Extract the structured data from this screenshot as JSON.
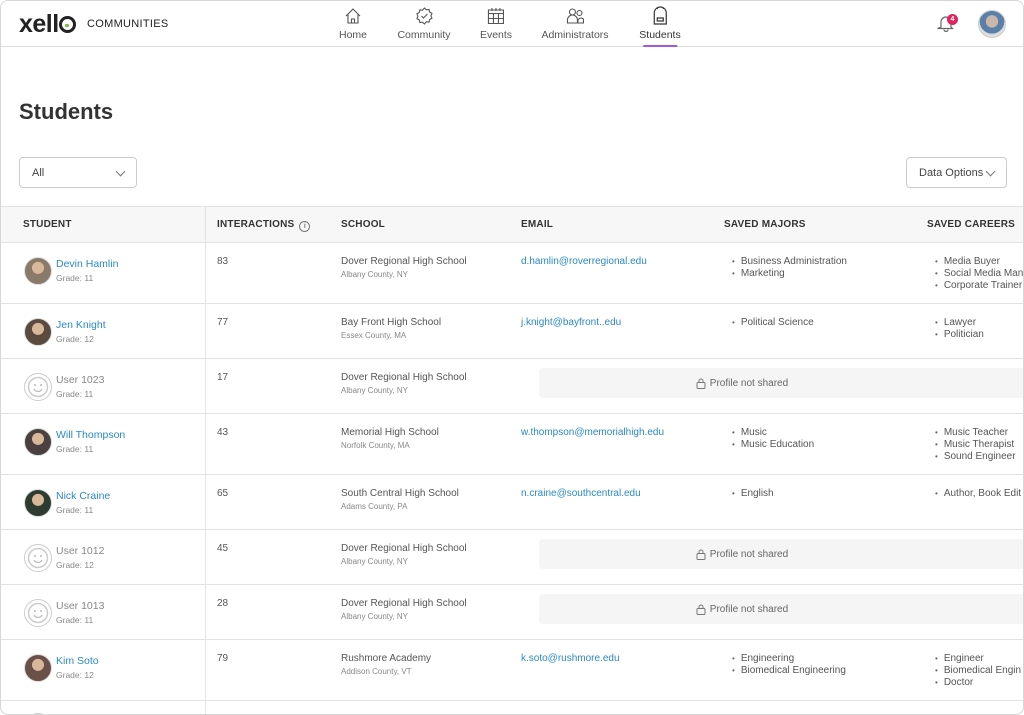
{
  "brand": {
    "logo": "xello",
    "subtitle": "COMMUNITIES"
  },
  "nav": [
    {
      "label": "Home",
      "icon": "home-icon"
    },
    {
      "label": "Community",
      "icon": "badge-check-icon"
    },
    {
      "label": "Events",
      "icon": "calendar-icon"
    },
    {
      "label": "Administrators",
      "icon": "users-icon"
    },
    {
      "label": "Students",
      "icon": "backpack-icon",
      "active": true
    }
  ],
  "notifications": {
    "count": "4"
  },
  "colors": {
    "accent": "#a35bd1",
    "link": "#2a8ac4",
    "badge": "#e0245e"
  },
  "page": {
    "title": "Students"
  },
  "filter": {
    "value": "All"
  },
  "data_options": "Data Options",
  "columns": {
    "student": "STUDENT",
    "interactions": "INTERACTIONS",
    "school": "SCHOOL",
    "email": "EMAIL",
    "majors": "SAVED MAJORS",
    "careers": "SAVED CAREERS"
  },
  "locked_text": "Profile not shared",
  "students": [
    {
      "name": "Devin Hamlin",
      "grade": "Grade: 11",
      "interactions": "83",
      "school": "Dover Regional High School",
      "county": "Albany County, NY",
      "email": "d.hamlin@roverregional.edu",
      "majors": [
        "Business Administration",
        "Marketing"
      ],
      "careers": [
        "Media Buyer",
        "Social Media Man",
        "Corporate Trainer"
      ]
    },
    {
      "name": "Jen Knight",
      "grade": "Grade: 12",
      "interactions": "77",
      "school": "Bay Front High School",
      "county": "Essex County, MA",
      "email": "j.knight@bayfront..edu",
      "majors": [
        "Political Science"
      ],
      "careers": [
        "Lawyer",
        "Politician"
      ]
    },
    {
      "name": "User 1023",
      "grade": "Grade: 11",
      "interactions": "17",
      "school": "Dover Regional High School",
      "county": "Albany County, NY",
      "anonymous": true
    },
    {
      "name": "Will Thompson",
      "grade": "Grade: 11",
      "interactions": "43",
      "school": "Memorial High School",
      "county": "Norfolk County, MA",
      "email": "w.thompson@memorialhigh.edu",
      "majors": [
        "Music",
        "Music Education"
      ],
      "careers": [
        "Music Teacher",
        "Music Therapist",
        "Sound Engineer"
      ]
    },
    {
      "name": "Nick Craine",
      "grade": "Grade: 11",
      "interactions": "65",
      "school": "South Central High School",
      "county": "Adams County, PA",
      "email": "n.craine@southcentral.edu",
      "majors": [
        "English"
      ],
      "careers": [
        "Author, Book Edit"
      ]
    },
    {
      "name": "User 1012",
      "grade": "Grade: 12",
      "interactions": "45",
      "school": "Dover Regional High School",
      "county": "Albany County, NY",
      "anonymous": true
    },
    {
      "name": "User 1013",
      "grade": "Grade: 11",
      "interactions": "28",
      "school": "Dover Regional High School",
      "county": "Albany County, NY",
      "anonymous": true
    },
    {
      "name": "Kim Soto",
      "grade": "Grade: 12",
      "interactions": "79",
      "school": "Rushmore Academy",
      "county": "Addison County, VT",
      "email": "k.soto@rushmore.edu",
      "majors": [
        "Engineering",
        "Biomedical Engineering"
      ],
      "careers": [
        "Engineer",
        "Biomedical Engin",
        "Doctor"
      ]
    }
  ]
}
